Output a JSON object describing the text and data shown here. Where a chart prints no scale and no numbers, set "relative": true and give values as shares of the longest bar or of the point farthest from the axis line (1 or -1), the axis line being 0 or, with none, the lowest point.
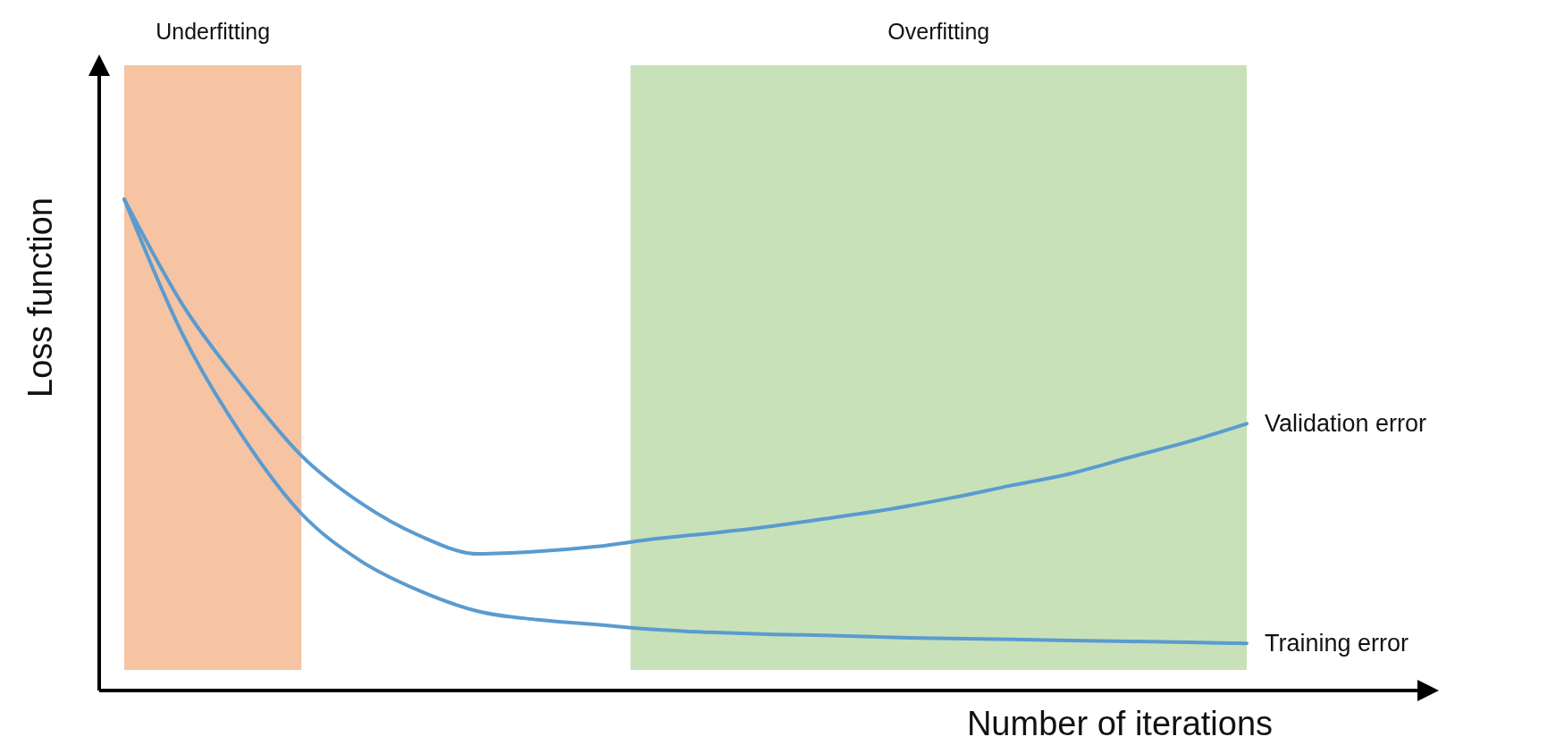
{
  "chart_data": {
    "type": "line",
    "relative": true,
    "xlabel": "Number of iterations",
    "ylabel": "Loss function",
    "annotations": [
      "Underfitting",
      "Overfitting"
    ],
    "categories": [
      null,
      null,
      null,
      null,
      null,
      null,
      null,
      null,
      null,
      null,
      null,
      null,
      null,
      null,
      null,
      null,
      null,
      null,
      null,
      null
    ],
    "series": [
      {
        "name": "Validation error",
        "color": "#5a9bd0",
        "values": [
          1,
          0.783,
          0.62,
          0.478,
          0.382,
          0.315,
          0.278,
          0.283,
          0.293,
          0.309,
          0.321,
          0.335,
          0.352,
          0.37,
          0.392,
          0.417,
          0.441,
          0.474,
          0.506,
          0.543
        ]
      },
      {
        "name": "Training error",
        "color": "#5a9bd0",
        "values": [
          1,
          0.722,
          0.518,
          0.36,
          0.264,
          0.203,
          0.161,
          0.144,
          0.134,
          0.124,
          0.118,
          0.114,
          0.112,
          0.108,
          0.106,
          0.104,
          0.102,
          0.1,
          0.098,
          0.096
        ]
      }
    ]
  }
}
